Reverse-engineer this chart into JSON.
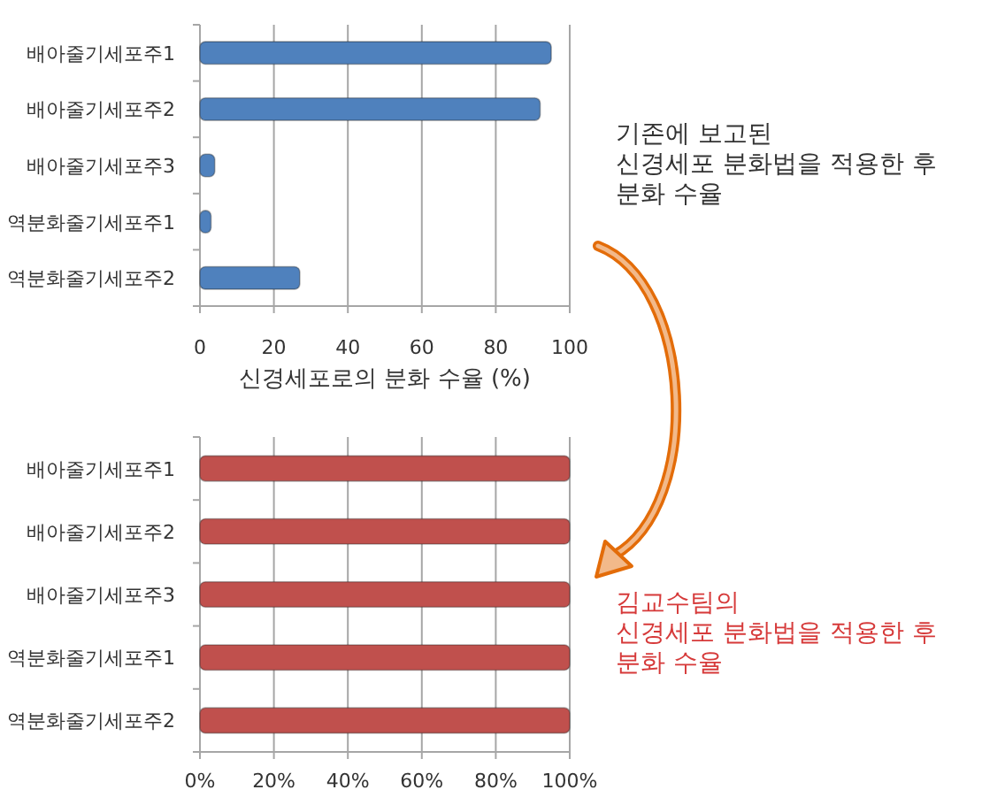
{
  "chart_data": [
    {
      "type": "bar",
      "orientation": "horizontal",
      "categories": [
        "배아줄기세포주1",
        "배아줄기세포주2",
        "배아줄기세포주3",
        "역분화줄기세포주1",
        "역분화줄기세포주2"
      ],
      "values": [
        95,
        92,
        4,
        3,
        27
      ],
      "color": "#4f81bd",
      "xlim": [
        0,
        100
      ],
      "xticks": [
        0,
        20,
        40,
        60,
        80,
        100
      ],
      "xlabel": "신경세포로의 분화 수율 (%)",
      "grid": "x",
      "annotations": [
        "기존에 보고된\n신경세포 분화법을 적용한 후\n분화 수율"
      ]
    },
    {
      "type": "bar",
      "orientation": "horizontal",
      "categories": [
        "배아줄기세포주1",
        "배아줄기세포주2",
        "배아줄기세포주3",
        "역분화줄기세포주1",
        "역분화줄기세포주2"
      ],
      "values": [
        100,
        100,
        100,
        100,
        100
      ],
      "color": "#c0504d",
      "xlim": [
        0,
        100
      ],
      "xticks": [
        {
          "value": 0,
          "label": "0%"
        },
        {
          "value": 20,
          "label": "20%"
        },
        {
          "value": 40,
          "label": "40%"
        },
        {
          "value": 60,
          "label": "60%"
        },
        {
          "value": 80,
          "label": "80%"
        },
        {
          "value": 100,
          "label": "100%"
        }
      ],
      "grid": "x",
      "annotations": [
        "김교수팀의\n신경세포 분화법을 적용한 후\n분화 수율"
      ]
    }
  ]
}
